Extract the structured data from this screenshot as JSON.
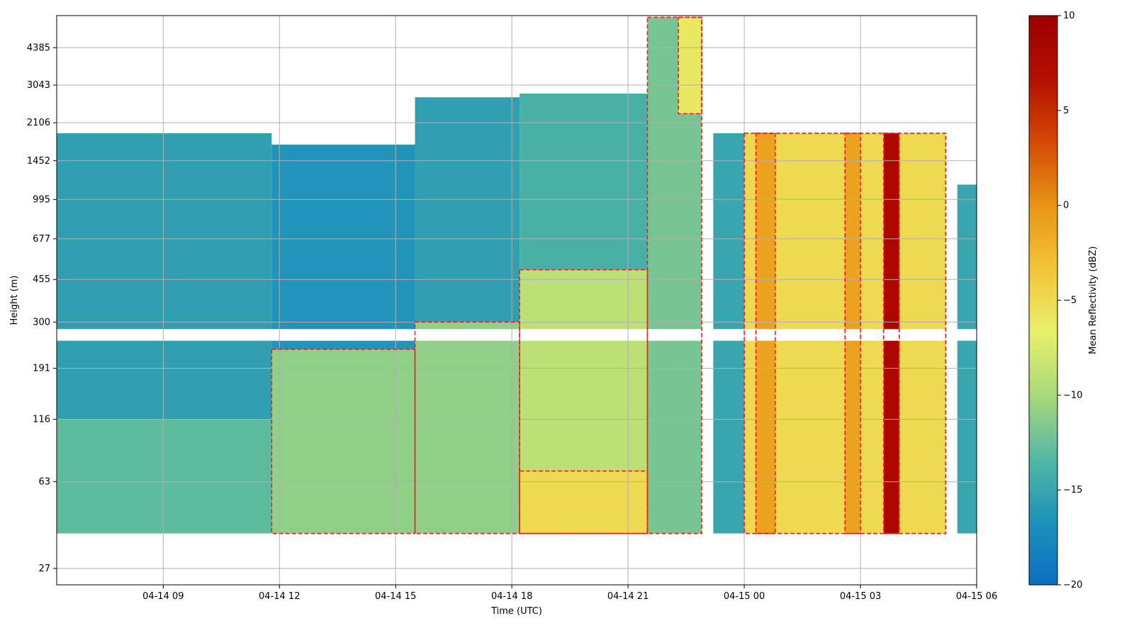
{
  "chart_data": {
    "type": "heatmap",
    "title": "",
    "xlabel": "Time (UTC)",
    "ylabel": "Height (m)",
    "x_ticks": [
      "04-14 09",
      "04-14 12",
      "04-14 15",
      "04-14 18",
      "04-14 21",
      "04-15 00",
      "04-15 03",
      "04-15 06"
    ],
    "x_range_hours": [
      6.25,
      30.0
    ],
    "x_tick_hours": [
      9,
      12,
      15,
      18,
      21,
      24,
      27,
      30
    ],
    "y_ticks": [
      "27",
      "63",
      "116",
      "191",
      "300",
      "455",
      "677",
      "995",
      "1452",
      "2106",
      "3043",
      "4385"
    ],
    "y_scale": "log",
    "y_range": [
      23,
      6000
    ],
    "grid": true,
    "colorbar": {
      "label": "Mean Reflectivity (dBZ)",
      "min": -20,
      "max": 10,
      "ticks": [
        "10",
        "5",
        "0",
        "−5",
        "−10",
        "−15",
        "−20"
      ],
      "tick_values": [
        10,
        5,
        0,
        -5,
        -10,
        -15,
        -20
      ],
      "colormap": [
        "#0a6fc4",
        "#1d92ba",
        "#54b8a4",
        "#a9d97a",
        "#e8f06a",
        "#f3c437",
        "#e89414",
        "#d34a06",
        "#b40f00",
        "#9e0000"
      ]
    },
    "contour_color": "#ff1a1a",
    "regions": [
      {
        "t0": 6.25,
        "t1": 11.8,
        "h0": 38,
        "h1": 1900,
        "value": -15.5
      },
      {
        "t0": 6.25,
        "t1": 11.8,
        "h0": 38,
        "h1": 116,
        "value": -13
      },
      {
        "t0": 11.8,
        "t1": 15.5,
        "h0": 38,
        "h1": 1700,
        "value": -16.5
      },
      {
        "t0": 11.8,
        "t1": 15.5,
        "h0": 38,
        "h1": 230,
        "value": -11
      },
      {
        "t0": 15.5,
        "t1": 18.2,
        "h0": 38,
        "h1": 2700,
        "value": -15.5
      },
      {
        "t0": 15.5,
        "t1": 18.2,
        "h0": 38,
        "h1": 300,
        "value": -11
      },
      {
        "t0": 18.2,
        "t1": 21.5,
        "h0": 38,
        "h1": 2800,
        "value": -14
      },
      {
        "t0": 18.2,
        "t1": 21.5,
        "h0": 38,
        "h1": 500,
        "value": -9
      },
      {
        "t0": 18.2,
        "t1": 21.5,
        "h0": 38,
        "h1": 70,
        "value": -5
      },
      {
        "t0": 21.5,
        "t1": 22.9,
        "h0": 38,
        "h1": 5900,
        "value": -12
      },
      {
        "t0": 22.3,
        "t1": 22.9,
        "h0": 2300,
        "h1": 5900,
        "value": -6
      },
      {
        "t0": 23.2,
        "t1": 24.0,
        "h0": 38,
        "h1": 1900,
        "value": -15
      },
      {
        "t0": 24.0,
        "t1": 29.2,
        "h0": 38,
        "h1": 1900,
        "value": -5
      },
      {
        "t0": 24.3,
        "t1": 24.8,
        "h0": 38,
        "h1": 1900,
        "value": -1
      },
      {
        "t0": 26.6,
        "t1": 27.0,
        "h0": 38,
        "h1": 1900,
        "value": -1
      },
      {
        "t0": 27.6,
        "t1": 28.0,
        "h0": 38,
        "h1": 1900,
        "value": 8
      },
      {
        "t0": 29.5,
        "t1": 30.0,
        "h0": 38,
        "h1": 1150,
        "value": -15
      }
    ],
    "gaps": [
      {
        "h0": 250,
        "h1": 280
      },
      {
        "h0": 23,
        "h1": 38
      }
    ]
  }
}
